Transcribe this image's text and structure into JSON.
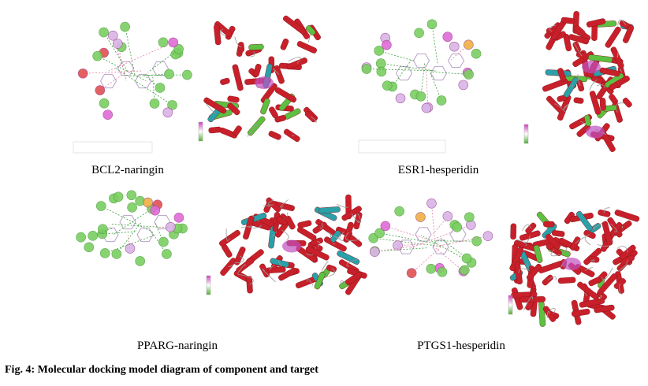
{
  "panels": [
    {
      "label": "BCL2-naringin"
    },
    {
      "label": "ESR1-hesperidin"
    },
    {
      "label": "PPARG-naringin"
    },
    {
      "label": "PTGS1-hesperidin"
    }
  ],
  "caption": "Fig. 4: Molecular docking model diagram of component and target"
}
